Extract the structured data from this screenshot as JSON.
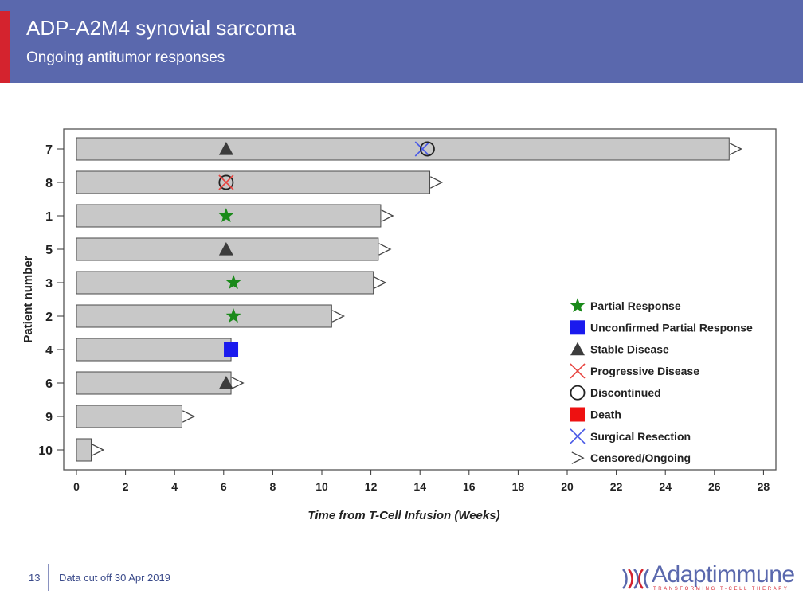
{
  "slide": {
    "title": "ADP-A2M4 synovial sarcoma",
    "subtitle": "Ongoing antitumor responses",
    "page_number": "13",
    "footer_text": "Data cut off 30 Apr 2019",
    "logo_text": "Adaptimmune",
    "logo_tagline": "TRANSFORMING T-CELL THERAPY",
    "colors": {
      "header": "#5a68ad",
      "accent": "#d4232e"
    }
  },
  "chart_data": {
    "type": "swimmer",
    "xlabel": "Time from T-Cell Infusion (Weeks)",
    "ylabel": "Patient number",
    "xlim": [
      0,
      28
    ],
    "xticks": [
      0,
      2,
      4,
      6,
      8,
      10,
      12,
      14,
      16,
      18,
      20,
      22,
      24,
      26,
      28
    ],
    "patients": [
      {
        "id": "7",
        "duration": 26.6,
        "events": [
          {
            "type": "stable",
            "week": 6.1
          },
          {
            "type": "surgical",
            "week": 14.1
          },
          {
            "type": "discontinued",
            "week": 14.3
          }
        ],
        "censored": true
      },
      {
        "id": "8",
        "duration": 14.4,
        "events": [
          {
            "type": "discontinued",
            "week": 6.1
          },
          {
            "type": "progressive",
            "week": 6.1
          }
        ],
        "censored": true
      },
      {
        "id": "1",
        "duration": 12.4,
        "events": [
          {
            "type": "partial",
            "week": 6.1
          }
        ],
        "censored": true
      },
      {
        "id": "5",
        "duration": 12.3,
        "events": [
          {
            "type": "stable",
            "week": 6.1
          }
        ],
        "censored": true
      },
      {
        "id": "3",
        "duration": 12.1,
        "events": [
          {
            "type": "partial",
            "week": 6.4
          }
        ],
        "censored": true
      },
      {
        "id": "2",
        "duration": 10.4,
        "events": [
          {
            "type": "partial",
            "week": 6.4
          }
        ],
        "censored": true
      },
      {
        "id": "4",
        "duration": 6.3,
        "events": [
          {
            "type": "unconfirmed",
            "week": 6.3
          }
        ],
        "censored": false
      },
      {
        "id": "6",
        "duration": 6.3,
        "events": [
          {
            "type": "stable",
            "week": 6.1
          }
        ],
        "censored": true
      },
      {
        "id": "9",
        "duration": 4.3,
        "events": [],
        "censored": true
      },
      {
        "id": "10",
        "duration": 0.6,
        "events": [],
        "censored": true
      }
    ],
    "legend": [
      {
        "key": "partial",
        "label": "Partial Response",
        "color": "#1a8a1a"
      },
      {
        "key": "unconfirmed",
        "label": "Unconfirmed Partial Response",
        "color": "#1a1aee"
      },
      {
        "key": "stable",
        "label": "Stable Disease",
        "color": "#3c3c3c"
      },
      {
        "key": "progressive",
        "label": "Progressive Disease",
        "color": "#e8433f"
      },
      {
        "key": "discontinued",
        "label": "Discontinued",
        "color": "#222222"
      },
      {
        "key": "death",
        "label": "Death",
        "color": "#ee1111"
      },
      {
        "key": "surgical",
        "label": "Surgical Resection",
        "color": "#4a5ae6"
      },
      {
        "key": "censored",
        "label": "Censored/Ongoing",
        "color": "#444444"
      }
    ],
    "legend_position": "bottom-right",
    "bar_color": "#c8c8c8"
  }
}
